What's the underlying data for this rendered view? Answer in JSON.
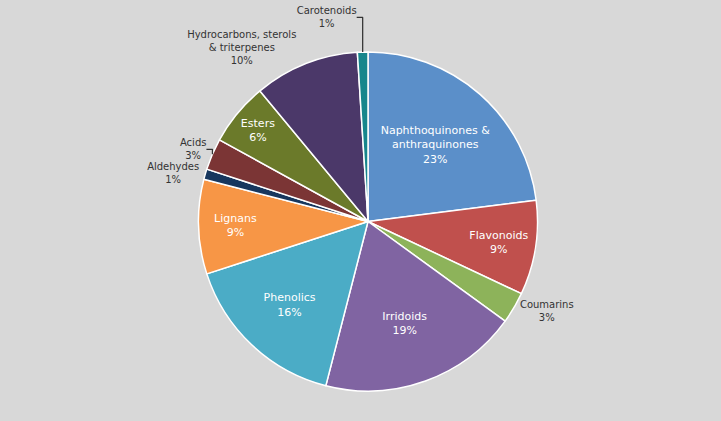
{
  "chart_data": {
    "type": "pie",
    "categories": [
      "Naphthoquinones &\nanthraquinones\n23%",
      "Flavonoids\n9%",
      "Coumarins\n3%",
      "Irridoids\n19%",
      "Phenolics\n16%",
      "Lignans\n9%",
      "Aldehydes\n1%",
      "Acids\n3%",
      "Esters\n6%",
      "Hydrocarbons, sterols\n& triterpenes\n10%",
      "Carotenoids\n1%"
    ],
    "values": [
      23,
      9,
      3,
      19,
      16,
      9,
      1,
      3,
      6,
      10,
      1
    ],
    "colors": [
      "#5B8FC9",
      "#C0504D",
      "#8DB35A",
      "#8064A2",
      "#4BACC6",
      "#F79646",
      "#17375E",
      "#7B3535",
      "#6B7A2A",
      "#4B3869",
      "#17868C"
    ]
  }
}
